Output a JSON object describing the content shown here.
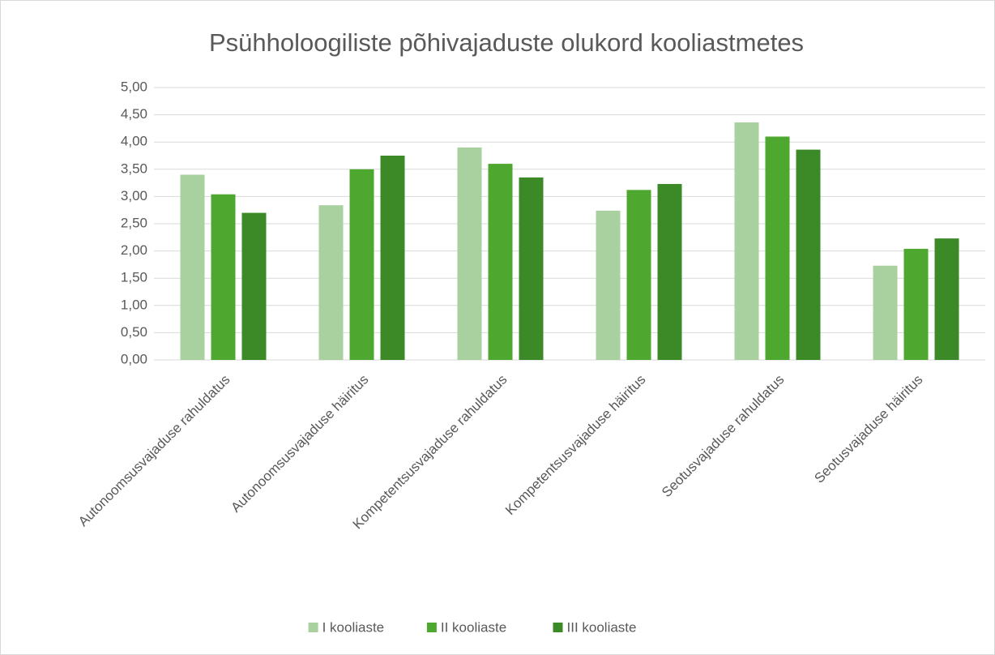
{
  "chart_data": {
    "type": "bar",
    "title": "Psühholoogiliste põhivajaduste olukord kooliastmetes",
    "categories": [
      "Autonoomsusvajaduse rahuldatus",
      "Autonoomsusvajaduse häiritus",
      "Kompetentsusvajaduse rahuldatus",
      "Kompetentsusvajaduse häiritus",
      "Seotusvajaduse rahuldatus",
      "Seotusvajaduse häiritus"
    ],
    "series": [
      {
        "name": "I kooliaste",
        "color": "#a9d1a0",
        "values": [
          3.4,
          2.84,
          3.9,
          2.74,
          4.36,
          1.73
        ]
      },
      {
        "name": "II kooliaste",
        "color": "#4ea72e",
        "values": [
          3.04,
          3.5,
          3.6,
          3.12,
          4.1,
          2.04
        ]
      },
      {
        "name": "III kooliaste",
        "color": "#3b8a27",
        "values": [
          2.7,
          3.75,
          3.35,
          3.23,
          3.86,
          2.23
        ]
      }
    ],
    "ylim": [
      0,
      5
    ],
    "yticks": [
      {
        "value": 0,
        "label": "0,00"
      },
      {
        "value": 0.5,
        "label": "0,50"
      },
      {
        "value": 1,
        "label": "1,00"
      },
      {
        "value": 1.5,
        "label": "1,50"
      },
      {
        "value": 2,
        "label": "2,00"
      },
      {
        "value": 2.5,
        "label": "2,50"
      },
      {
        "value": 3,
        "label": "3,00"
      },
      {
        "value": 3.5,
        "label": "3,50"
      },
      {
        "value": 4,
        "label": "4,00"
      },
      {
        "value": 4.5,
        "label": "4,50"
      },
      {
        "value": 5,
        "label": "5,00"
      }
    ],
    "grid": true,
    "legend": "bottom"
  }
}
